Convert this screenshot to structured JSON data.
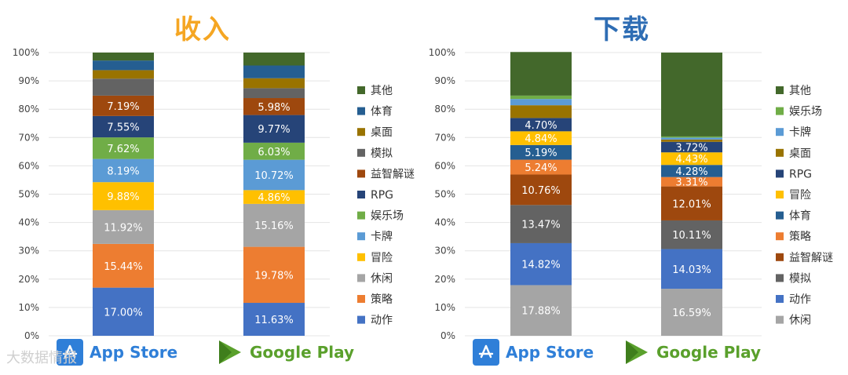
{
  "colors": {
    "动作": "#4472C4",
    "策略": "#ED7D31",
    "休闲": "#A5A5A5",
    "冒险": "#FFC000",
    "卡牌": "#5B9BD5",
    "娱乐场": "#70AD47",
    "RPG": "#264478",
    "益智解谜": "#9E480E",
    "模拟": "#636363",
    "桌面": "#997300",
    "体育": "#255E91",
    "其他": "#43682B"
  },
  "stores": {
    "appstore": {
      "label": "App Store",
      "color": "#2F7FD8"
    },
    "googleplay": {
      "label": "Google Play",
      "color": "#5AA02C"
    }
  },
  "watermark": "大数据情报",
  "chart_data": [
    {
      "type": "bar",
      "stacked": true,
      "title": "收入",
      "title_color": "#F5A623",
      "categories": [
        "App Store",
        "Google Play"
      ],
      "ylim": [
        0,
        100
      ],
      "yticks": [
        "0%",
        "10%",
        "20%",
        "30%",
        "40%",
        "50%",
        "60%",
        "70%",
        "80%",
        "90%",
        "100%"
      ],
      "legend_position": "right",
      "legend_order": [
        "其他",
        "体育",
        "桌面",
        "模拟",
        "益智解谜",
        "RPG",
        "娱乐场",
        "卡牌",
        "冒险",
        "休闲",
        "策略",
        "动作"
      ],
      "series": [
        {
          "name": "动作",
          "values": [
            17.0,
            11.63
          ],
          "labels": [
            "17.00%",
            "11.63%"
          ]
        },
        {
          "name": "策略",
          "values": [
            15.44,
            19.78
          ],
          "labels": [
            "15.44%",
            "19.78%"
          ]
        },
        {
          "name": "休闲",
          "values": [
            11.92,
            15.16
          ],
          "labels": [
            "11.92%",
            "15.16%"
          ]
        },
        {
          "name": "冒险",
          "values": [
            9.88,
            4.86
          ],
          "labels": [
            "9.88%",
            "4.86%"
          ]
        },
        {
          "name": "卡牌",
          "values": [
            8.19,
            10.72
          ],
          "labels": [
            "8.19%",
            "10.72%"
          ]
        },
        {
          "name": "娱乐场",
          "values": [
            7.62,
            6.03
          ],
          "labels": [
            "7.62%",
            "6.03%"
          ]
        },
        {
          "name": "RPG",
          "values": [
            7.55,
            9.77
          ],
          "labels": [
            "7.55%",
            "9.77%"
          ]
        },
        {
          "name": "益智解谜",
          "values": [
            7.19,
            5.98
          ],
          "labels": [
            "7.19%",
            "5.98%"
          ]
        },
        {
          "name": "模拟",
          "values": [
            6.0,
            3.5
          ],
          "labels": [
            "",
            ""
          ]
        },
        {
          "name": "桌面",
          "values": [
            3.0,
            3.5
          ],
          "labels": [
            "",
            ""
          ]
        },
        {
          "name": "体育",
          "values": [
            3.4,
            4.5
          ],
          "labels": [
            "",
            ""
          ]
        },
        {
          "name": "其他",
          "values": [
            2.81,
            4.57
          ],
          "labels": [
            "",
            ""
          ]
        }
      ]
    },
    {
      "type": "bar",
      "stacked": true,
      "title": "下载",
      "title_color": "#2E6DB4",
      "categories": [
        "App Store",
        "Google Play"
      ],
      "ylim": [
        0,
        100
      ],
      "yticks": [
        "0%",
        "10%",
        "20%",
        "30%",
        "40%",
        "50%",
        "60%",
        "70%",
        "80%",
        "90%",
        "100%"
      ],
      "legend_position": "right",
      "legend_order": [
        "其他",
        "娱乐场",
        "卡牌",
        "桌面",
        "RPG",
        "冒险",
        "体育",
        "策略",
        "益智解谜",
        "模拟",
        "动作",
        "休闲"
      ],
      "series": [
        {
          "name": "休闲",
          "values": [
            17.88,
            16.59
          ],
          "labels": [
            "17.88%",
            "16.59%"
          ]
        },
        {
          "name": "动作",
          "values": [
            14.82,
            14.03
          ],
          "labels": [
            "14.82%",
            "14.03%"
          ]
        },
        {
          "name": "模拟",
          "values": [
            13.47,
            10.11
          ],
          "labels": [
            "13.47%",
            "10.11%"
          ]
        },
        {
          "name": "益智解谜",
          "values": [
            10.76,
            12.01
          ],
          "labels": [
            "10.76%",
            "12.01%"
          ]
        },
        {
          "name": "策略",
          "values": [
            5.24,
            3.31
          ],
          "labels": [
            "5.24%",
            "3.31%"
          ]
        },
        {
          "name": "体育",
          "values": [
            5.19,
            4.28
          ],
          "labels": [
            "5.19%",
            "4.28%"
          ]
        },
        {
          "name": "冒险",
          "values": [
            4.84,
            4.43
          ],
          "labels": [
            "4.84%",
            "4.43%"
          ]
        },
        {
          "name": "RPG",
          "values": [
            4.7,
            3.72
          ],
          "labels": [
            "4.70%",
            "3.72%"
          ]
        },
        {
          "name": "桌面",
          "values": [
            4.5,
            0.8
          ],
          "labels": [
            "",
            ""
          ]
        },
        {
          "name": "卡牌",
          "values": [
            2.2,
            0.7
          ],
          "labels": [
            "",
            ""
          ]
        },
        {
          "name": "娱乐场",
          "values": [
            1.2,
            0.4
          ],
          "labels": [
            "",
            ""
          ]
        },
        {
          "name": "其他",
          "values": [
            15.4,
            29.61
          ],
          "labels": [
            "",
            ""
          ]
        }
      ]
    }
  ]
}
